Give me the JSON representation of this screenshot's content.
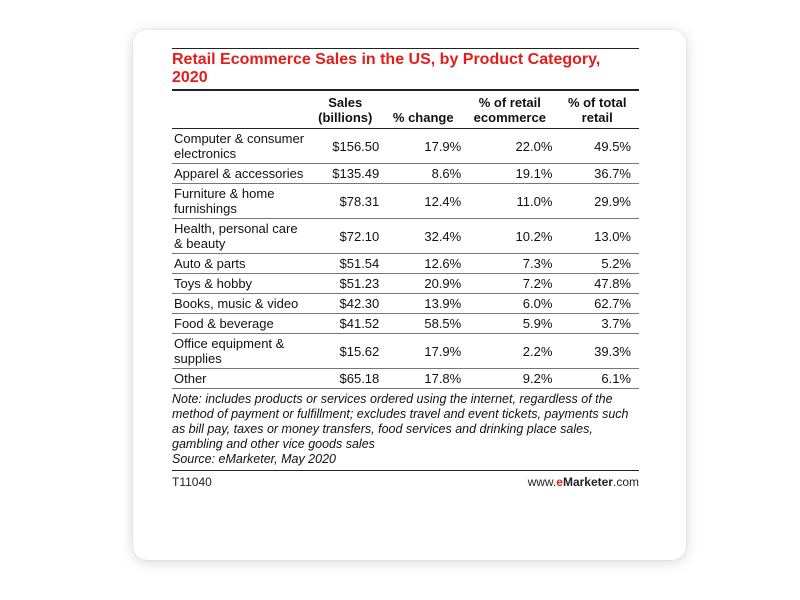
{
  "chart_data": {
    "type": "table",
    "title": "Retail Ecommerce Sales in the US, by Product Category, 2020",
    "columns": [
      "",
      "Sales (billions)",
      "% change",
      "% of retail ecommerce",
      "% of total retail"
    ],
    "rows": [
      {
        "category": "Computer & consumer electronics",
        "sales": "$156.50",
        "change": "17.9%",
        "share_ecom": "22.0%",
        "share_total": "49.5%"
      },
      {
        "category": "Apparel & accessories",
        "sales": "$135.49",
        "change": "8.6%",
        "share_ecom": "19.1%",
        "share_total": "36.7%"
      },
      {
        "category": "Furniture & home furnishings",
        "sales": "$78.31",
        "change": "12.4%",
        "share_ecom": "11.0%",
        "share_total": "29.9%"
      },
      {
        "category": "Health, personal care & beauty",
        "sales": "$72.10",
        "change": "32.4%",
        "share_ecom": "10.2%",
        "share_total": "13.0%"
      },
      {
        "category": "Auto & parts",
        "sales": "$51.54",
        "change": "12.6%",
        "share_ecom": "7.3%",
        "share_total": "5.2%"
      },
      {
        "category": "Toys & hobby",
        "sales": "$51.23",
        "change": "20.9%",
        "share_ecom": "7.2%",
        "share_total": "47.8%"
      },
      {
        "category": "Books, music & video",
        "sales": "$42.30",
        "change": "13.9%",
        "share_ecom": "6.0%",
        "share_total": "62.7%"
      },
      {
        "category": "Food & beverage",
        "sales": "$41.52",
        "change": "58.5%",
        "share_ecom": "5.9%",
        "share_total": "3.7%"
      },
      {
        "category": "Office equipment & supplies",
        "sales": "$15.62",
        "change": "17.9%",
        "share_ecom": "2.2%",
        "share_total": "39.3%"
      },
      {
        "category": "Other",
        "sales": "$65.18",
        "change": "17.8%",
        "share_ecom": "9.2%",
        "share_total": "6.1%"
      }
    ],
    "note": "Note: includes products or services ordered using the internet, regardless of the method of payment or fulfillment; excludes travel and event tickets, payments such as bill pay, taxes or money transfers, food services and drinking place sales, gambling and other vice goods sales",
    "source": "Source: eMarketer, May 2020",
    "chart_id": "T11040",
    "brand": {
      "prefix": "www.",
      "e": "e",
      "name": "Marketer",
      "suffix": ".com"
    }
  },
  "colors": {
    "title": "#e31d1a",
    "brand_accent": "#e31d1a",
    "text": "#111111"
  }
}
